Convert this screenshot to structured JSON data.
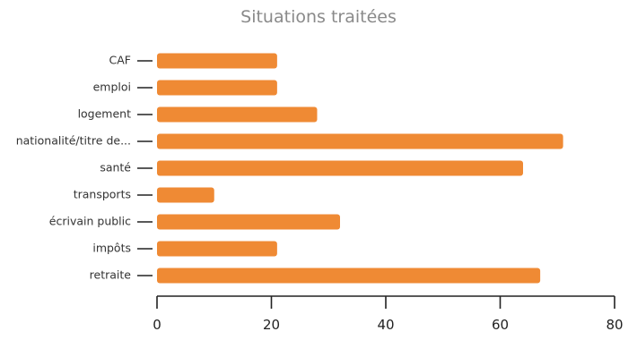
{
  "chart_data": {
    "type": "bar",
    "orientation": "horizontal",
    "title": "Situations traitées",
    "xlabel": "",
    "ylabel": "",
    "categories": [
      "CAF",
      "emploi",
      "logement",
      "nationalité/titre de...",
      "santé",
      "transports",
      "écrivain public",
      "impôts",
      "retraite"
    ],
    "values": [
      21,
      21,
      28,
      71,
      64,
      10,
      32,
      21,
      67
    ],
    "xlim": [
      0,
      80
    ],
    "xticks": [
      "0",
      "20",
      "40",
      "60",
      "80"
    ],
    "grid": false,
    "bar_color": "#ef8a34"
  }
}
